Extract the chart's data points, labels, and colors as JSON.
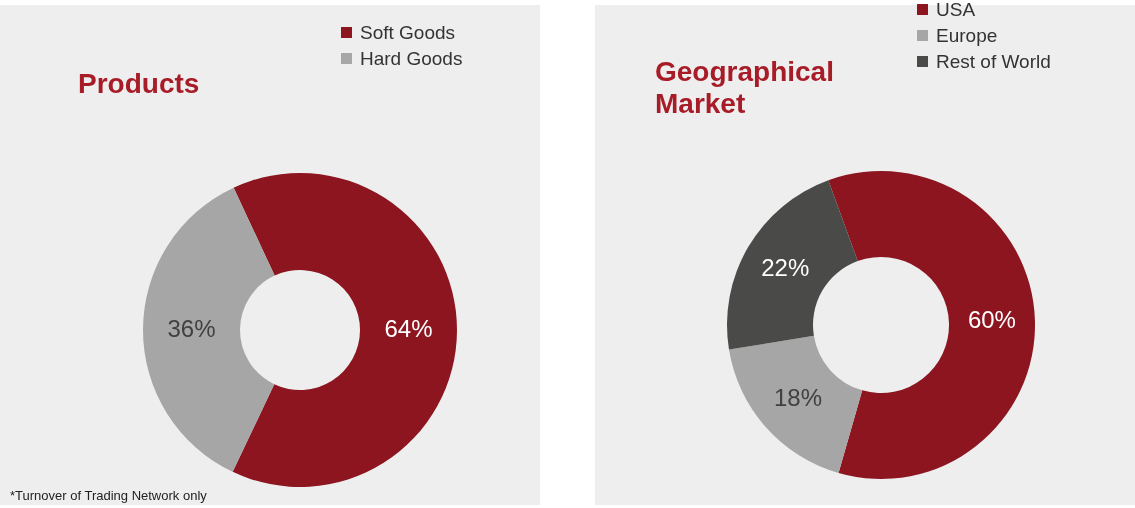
{
  "chart_data": [
    {
      "type": "donut",
      "title": "Products",
      "categories": [
        "Soft Goods",
        "Hard Goods"
      ],
      "values": [
        64,
        36
      ],
      "colors": [
        "#8c1520",
        "#a6a6a6"
      ],
      "value_labels": [
        "64%",
        "36%"
      ],
      "legend": "top right",
      "annotations": [
        "*Turnover of Trading Network only"
      ]
    },
    {
      "type": "donut",
      "title": "Geographical Market",
      "categories": [
        "USA",
        "Europe",
        "Rest of World"
      ],
      "values": [
        60,
        18,
        22
      ],
      "colors": [
        "#8c1520",
        "#a6a6a6",
        "#4a4a48"
      ],
      "value_labels": [
        "60%",
        "18%",
        "22%"
      ],
      "legend": "top right"
    }
  ]
}
